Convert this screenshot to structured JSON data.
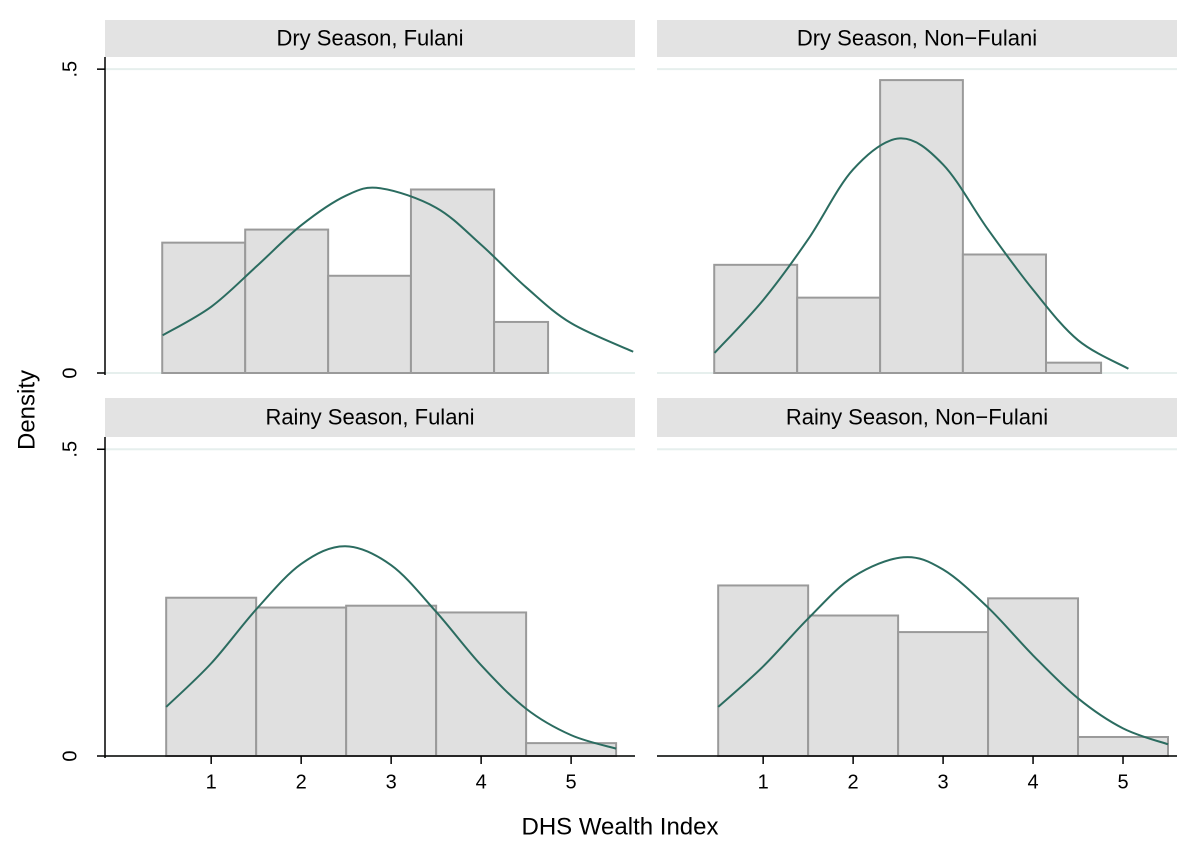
{
  "ylabel": "Density",
  "xlabel": "DHS Wealth Index",
  "chart_data": [
    {
      "type": "histogram",
      "title": "Dry Season, Fulani",
      "bins": [
        0.456,
        1.378,
        2.3,
        3.22,
        4.144,
        4.744
      ],
      "values": [
        0.2145,
        0.236,
        0.16,
        0.302,
        0.084
      ],
      "curve": {
        "x": [
          0.46,
          1,
          1.5,
          2,
          2.5,
          2.88,
          3.5,
          4,
          4.5,
          5,
          5.69
        ],
        "values": [
          0.062,
          0.109,
          0.175,
          0.243,
          0.292,
          0.304,
          0.272,
          0.211,
          0.141,
          0.082,
          0.035
        ]
      },
      "xlim": [
        -0.18,
        5.71
      ],
      "ylim": [
        0,
        0.52
      ],
      "yticks": [
        0,
        {
          "value": 0.5,
          "label": ".5"
        }
      ],
      "bar_color": "#e0e0e0",
      "bar_edge": "#9a9a9a",
      "curve_color": "#2b6c60",
      "grid": true
    },
    {
      "type": "histogram",
      "title": "Dry Season, Non−Fulani",
      "bins": [
        0.456,
        1.378,
        2.3,
        3.22,
        4.144,
        4.756
      ],
      "values": [
        0.178,
        0.124,
        0.482,
        0.195,
        0.017
      ],
      "curve": {
        "x": [
          0.46,
          1,
          1.5,
          2,
          2.52,
          3,
          3.5,
          4,
          4.5,
          5.06
        ],
        "values": [
          0.033,
          0.12,
          0.22,
          0.335,
          0.386,
          0.343,
          0.236,
          0.137,
          0.054,
          0.007
        ]
      },
      "xlim": [
        -0.18,
        5.6
      ],
      "ylim": [
        0,
        0.52
      ],
      "bar_color": "#e0e0e0",
      "bar_edge": "#9a9a9a",
      "curve_color": "#2b6c60",
      "grid": true
    },
    {
      "type": "histogram",
      "title": "Rainy Season, Fulani",
      "bins": [
        0.5,
        1.5,
        2.5,
        3.5,
        4.5,
        5.5
      ],
      "values": [
        0.258,
        0.242,
        0.245,
        0.234,
        0.021
      ],
      "curve": {
        "x": [
          0.5,
          1,
          1.5,
          2,
          2.49,
          3,
          3.5,
          4,
          4.5,
          5,
          5.5
        ],
        "values": [
          0.08,
          0.151,
          0.239,
          0.313,
          0.342,
          0.311,
          0.235,
          0.148,
          0.077,
          0.034,
          0.012
        ]
      },
      "xlim": [
        -0.18,
        5.71
      ],
      "ylim": [
        0,
        0.52
      ],
      "yticks": [
        0,
        {
          "value": 0.5,
          "label": ".5"
        }
      ],
      "xticks": [
        1,
        2,
        3,
        4,
        5
      ],
      "bar_color": "#e0e0e0",
      "bar_edge": "#9a9a9a",
      "curve_color": "#2b6c60",
      "grid": true
    },
    {
      "type": "histogram",
      "title": "Rainy Season, Non−Fulani",
      "bins": [
        0.5,
        1.5,
        2.5,
        3.5,
        4.5,
        5.5
      ],
      "values": [
        0.278,
        0.229,
        0.202,
        0.257,
        0.031
      ],
      "curve": {
        "x": [
          0.5,
          1,
          1.5,
          2,
          2.56,
          3,
          3.5,
          4,
          4.5,
          5,
          5.5
        ],
        "values": [
          0.08,
          0.146,
          0.224,
          0.292,
          0.324,
          0.304,
          0.242,
          0.164,
          0.094,
          0.045,
          0.019
        ]
      },
      "xlim": [
        -0.18,
        5.6
      ],
      "ylim": [
        0,
        0.52
      ],
      "xticks": [
        1,
        2,
        3,
        4,
        5
      ],
      "bar_color": "#e0e0e0",
      "bar_edge": "#9a9a9a",
      "curve_color": "#2b6c60",
      "grid": true
    }
  ]
}
